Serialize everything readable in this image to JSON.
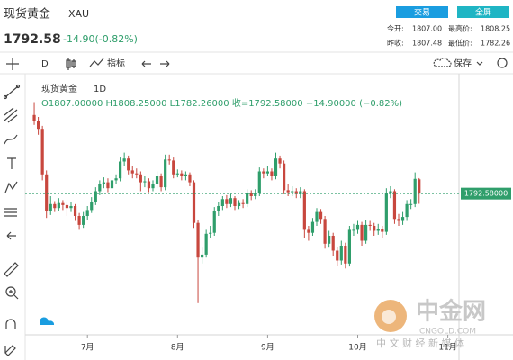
{
  "header": {
    "name": "现货黄金",
    "code": "XAU",
    "price": "1792.58",
    "change": "-14.90(-0.82%)",
    "buttons": [
      "交易",
      "全屏"
    ],
    "stats": [
      {
        "label": "今开:",
        "value": "1807.00"
      },
      {
        "label": "最高价:",
        "value": "1808.25"
      },
      {
        "label": "昨收:",
        "value": "1807.48"
      },
      {
        "label": "最低价:",
        "value": "1782.26"
      }
    ]
  },
  "toolbar": {
    "interval": "D",
    "indicators": "指标",
    "save": "保存"
  },
  "legend": {
    "name": "现货黄金",
    "interval": "1D",
    "ohlc": "O1807.00000 H1808.25000 L1782.26000 收=1792.58000 −14.90000 (−0.82%)"
  },
  "watermark": {
    "brand": "中金网",
    "site": "CNGOLD.COM",
    "tagline": "中 文 财 经 新 媒 体"
  },
  "chart_data": {
    "type": "candlestick",
    "up_color": "#2f9e6b",
    "down_color": "#c8473e",
    "xlim": [
      -1,
      103
    ],
    "xticks": [
      {
        "value": 13,
        "label": "7月"
      },
      {
        "value": 35,
        "label": "8月"
      },
      {
        "value": 57,
        "label": "9月"
      },
      {
        "value": 79,
        "label": "10月"
      },
      {
        "value": 101,
        "label": "11月"
      }
    ],
    "ylim": [
      1650,
      1890
    ],
    "grid": false,
    "last_price": 1792.58,
    "last_price_label": "1792.58000",
    "last_price_color": "#2f9e6b",
    "candles": [
      [
        1872,
        1885,
        1862,
        1866
      ],
      [
        1866,
        1870,
        1852,
        1858
      ],
      [
        1858,
        1861,
        1806,
        1812
      ],
      [
        1812,
        1816,
        1768,
        1775
      ],
      [
        1775,
        1790,
        1771,
        1782
      ],
      [
        1782,
        1785,
        1774,
        1778
      ],
      [
        1778,
        1788,
        1775,
        1783
      ],
      [
        1783,
        1786,
        1776,
        1781
      ],
      [
        1781,
        1784,
        1770,
        1778
      ],
      [
        1778,
        1784,
        1774,
        1780
      ],
      [
        1780,
        1782,
        1765,
        1770
      ],
      [
        1770,
        1773,
        1756,
        1761
      ],
      [
        1761,
        1774,
        1758,
        1770
      ],
      [
        1770,
        1780,
        1766,
        1776
      ],
      [
        1776,
        1789,
        1773,
        1784
      ],
      [
        1784,
        1799,
        1781,
        1795
      ],
      [
        1795,
        1806,
        1791,
        1802
      ],
      [
        1802,
        1809,
        1798,
        1804
      ],
      [
        1804,
        1808,
        1794,
        1798
      ],
      [
        1798,
        1810,
        1795,
        1806
      ],
      [
        1806,
        1812,
        1802,
        1808
      ],
      [
        1808,
        1829,
        1805,
        1825
      ],
      [
        1825,
        1834,
        1820,
        1828
      ],
      [
        1828,
        1831,
        1812,
        1816
      ],
      [
        1816,
        1820,
        1808,
        1813
      ],
      [
        1813,
        1818,
        1808,
        1812
      ],
      [
        1812,
        1815,
        1795,
        1804
      ],
      [
        1804,
        1810,
        1799,
        1805
      ],
      [
        1805,
        1808,
        1794,
        1798
      ],
      [
        1798,
        1806,
        1795,
        1802
      ],
      [
        1802,
        1815,
        1798,
        1810
      ],
      [
        1810,
        1813,
        1795,
        1799
      ],
      [
        1799,
        1832,
        1796,
        1827
      ],
      [
        1827,
        1832,
        1822,
        1826
      ],
      [
        1826,
        1829,
        1808,
        1812
      ],
      [
        1812,
        1817,
        1809,
        1813
      ],
      [
        1813,
        1816,
        1806,
        1810
      ],
      [
        1810,
        1815,
        1806,
        1812
      ],
      [
        1812,
        1814,
        1800,
        1804
      ],
      [
        1804,
        1806,
        1758,
        1763
      ],
      [
        1763,
        1766,
        1682,
        1728
      ],
      [
        1728,
        1738,
        1722,
        1731
      ],
      [
        1731,
        1756,
        1728,
        1752
      ],
      [
        1752,
        1760,
        1748,
        1753
      ],
      [
        1753,
        1779,
        1750,
        1775
      ],
      [
        1775,
        1784,
        1770,
        1780
      ],
      [
        1780,
        1790,
        1776,
        1787
      ],
      [
        1787,
        1791,
        1778,
        1782
      ],
      [
        1782,
        1792,
        1779,
        1788
      ],
      [
        1788,
        1790,
        1776,
        1780
      ],
      [
        1780,
        1786,
        1777,
        1783
      ],
      [
        1783,
        1787,
        1778,
        1782
      ],
      [
        1782,
        1797,
        1779,
        1793
      ],
      [
        1793,
        1796,
        1786,
        1790
      ],
      [
        1790,
        1797,
        1787,
        1793
      ],
      [
        1793,
        1819,
        1790,
        1815
      ],
      [
        1815,
        1818,
        1808,
        1813
      ],
      [
        1813,
        1820,
        1810,
        1815
      ],
      [
        1815,
        1818,
        1806,
        1810
      ],
      [
        1810,
        1834,
        1807,
        1828
      ],
      [
        1828,
        1831,
        1818,
        1823
      ],
      [
        1823,
        1826,
        1792,
        1796
      ],
      [
        1796,
        1802,
        1790,
        1794
      ],
      [
        1794,
        1800,
        1790,
        1795
      ],
      [
        1795,
        1798,
        1788,
        1792
      ],
      [
        1792,
        1799,
        1788,
        1795
      ],
      [
        1795,
        1797,
        1748,
        1756
      ],
      [
        1756,
        1760,
        1745,
        1753
      ],
      [
        1753,
        1768,
        1750,
        1764
      ],
      [
        1764,
        1778,
        1760,
        1774
      ],
      [
        1774,
        1777,
        1762,
        1767
      ],
      [
        1767,
        1770,
        1737,
        1742
      ],
      [
        1742,
        1755,
        1738,
        1750
      ],
      [
        1750,
        1753,
        1730,
        1735
      ],
      [
        1735,
        1739,
        1720,
        1725
      ],
      [
        1725,
        1745,
        1721,
        1740
      ],
      [
        1740,
        1743,
        1717,
        1722
      ],
      [
        1722,
        1760,
        1719,
        1756
      ],
      [
        1756,
        1762,
        1750,
        1756
      ],
      [
        1756,
        1765,
        1752,
        1761
      ],
      [
        1761,
        1764,
        1740,
        1745
      ],
      [
        1745,
        1766,
        1742,
        1761
      ],
      [
        1761,
        1765,
        1755,
        1760
      ],
      [
        1760,
        1763,
        1750,
        1755
      ],
      [
        1755,
        1762,
        1751,
        1757
      ],
      [
        1757,
        1760,
        1748,
        1754
      ],
      [
        1754,
        1798,
        1751,
        1793
      ],
      [
        1793,
        1800,
        1788,
        1795
      ],
      [
        1795,
        1797,
        1762,
        1767
      ],
      [
        1767,
        1772,
        1760,
        1765
      ],
      [
        1765,
        1774,
        1761,
        1769
      ],
      [
        1769,
        1786,
        1765,
        1782
      ],
      [
        1782,
        1787,
        1777,
        1782
      ],
      [
        1782,
        1814,
        1779,
        1807.48
      ],
      [
        1807,
        1808.25,
        1782.26,
        1792.58
      ]
    ]
  }
}
